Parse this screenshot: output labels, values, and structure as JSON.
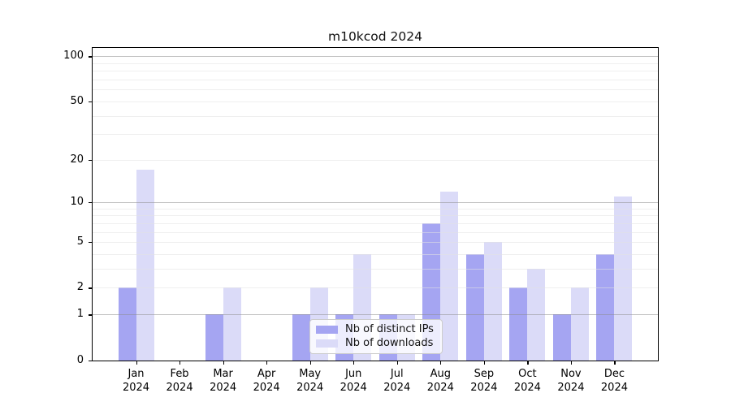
{
  "title": "m10kcod 2024",
  "chart_data": {
    "type": "bar",
    "title": "m10kcod 2024",
    "categories": [
      "Jan",
      "Feb",
      "Mar",
      "Apr",
      "May",
      "Jun",
      "Jul",
      "Aug",
      "Sep",
      "Oct",
      "Nov",
      "Dec"
    ],
    "year": "2024",
    "series": [
      {
        "name": "Nb of distinct IPs",
        "color": "#a5a5f2",
        "values": [
          2,
          0,
          1,
          0,
          1,
          1,
          1,
          7,
          4,
          2,
          1,
          4
        ]
      },
      {
        "name": "Nb of downloads",
        "color": "#dbdbf8",
        "values": [
          17,
          0,
          2,
          0,
          2,
          4,
          1,
          12,
          5,
          3,
          2,
          11
        ]
      }
    ],
    "xlabel": "",
    "ylabel": "",
    "yscale": "log1p",
    "ylim": [
      0,
      115
    ],
    "yticks": [
      0,
      1,
      2,
      5,
      10,
      20,
      50,
      100
    ],
    "gridlines_major": [
      1,
      10,
      100
    ],
    "gridlines_minor": [
      2,
      3,
      4,
      5,
      6,
      7,
      8,
      9,
      20,
      30,
      40,
      50,
      60,
      70,
      80,
      90
    ],
    "grid": true,
    "legend_position": "lower center"
  },
  "colors": {
    "spine": "#000000",
    "grid_major": "#8f8f8f",
    "grid_minor": "#e3e3e3",
    "background": "#ffffff"
  }
}
